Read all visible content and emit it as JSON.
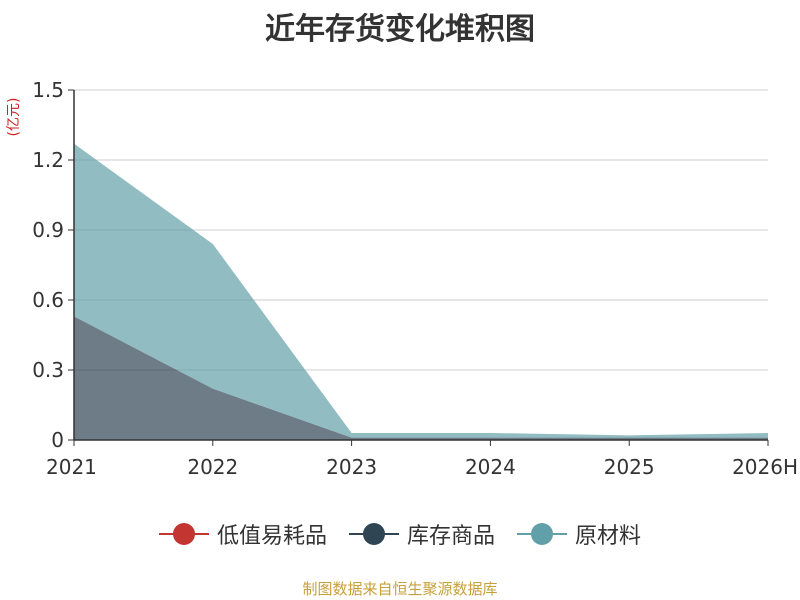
{
  "chart_data": {
    "type": "area",
    "stacked": true,
    "title": "近年存货变化堆积图",
    "ylabel": "(亿元)",
    "xlabel": "",
    "categories": [
      "2021",
      "2022",
      "2023",
      "2024",
      "2025",
      "2026H"
    ],
    "ylim": [
      0,
      1.5
    ],
    "yticks": [
      "0",
      "0.3",
      "0.6",
      "0.9",
      "1.2",
      "1.5"
    ],
    "grid": true,
    "legend_position": "bottom",
    "series": [
      {
        "name": "低值易耗品",
        "color": "#c23531",
        "values": [
          0,
          0,
          0,
          0,
          0,
          0
        ]
      },
      {
        "name": "库存商品",
        "color": "#2f4554",
        "values": [
          0.53,
          0.22,
          0.01,
          0.01,
          0.01,
          0.01
        ]
      },
      {
        "name": "原材料",
        "color": "#61a0a8",
        "values": [
          0.74,
          0.62,
          0.02,
          0.02,
          0.01,
          0.02
        ]
      }
    ]
  },
  "source_note": "制图数据来自恒生聚源数据库"
}
